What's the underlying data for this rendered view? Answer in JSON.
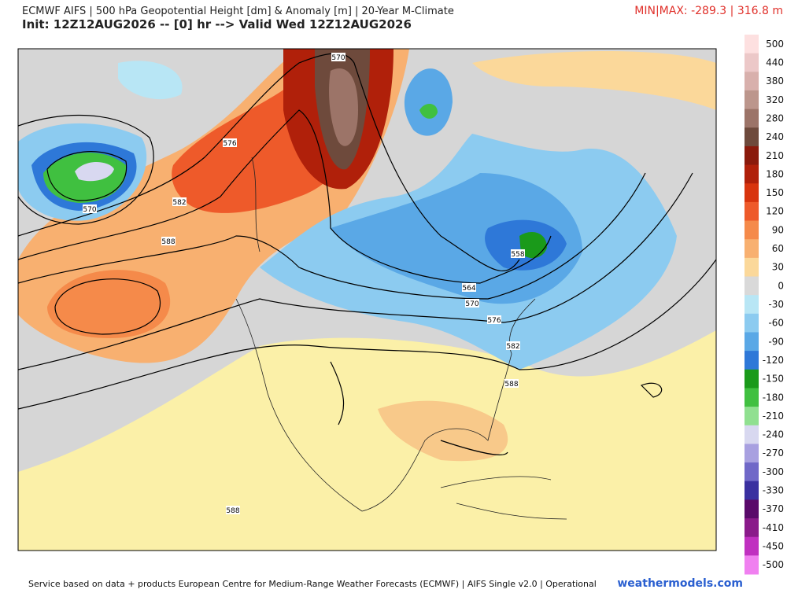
{
  "header": {
    "title": "ECMWF AIFS | 500 hPa Geopotential Height [dm] & Anomaly [m] | 20-Year M-Climate",
    "init": "Init: 12Z12AUG2026 -- [0] hr --> Valid Wed 12Z12AUG2026",
    "minmax": "MIN|MAX: -289.3 | 316.8 m"
  },
  "contour_labels": [
    "570",
    "576",
    "570",
    "582",
    "588",
    "558",
    "564",
    "570",
    "576",
    "582",
    "588",
    "588"
  ],
  "legend": [
    {
      "label": "500",
      "color": "#fde0e0"
    },
    {
      "label": "440",
      "color": "#ecc8c8"
    },
    {
      "label": "380",
      "color": "#d8b0ac"
    },
    {
      "label": "320",
      "color": "#bc968c"
    },
    {
      "label": "280",
      "color": "#9c7468"
    },
    {
      "label": "240",
      "color": "#6e4a3c"
    },
    {
      "label": "210",
      "color": "#8a1a0c"
    },
    {
      "label": "180",
      "color": "#b0200a"
    },
    {
      "label": "150",
      "color": "#d8340e"
    },
    {
      "label": "120",
      "color": "#ee5a2a"
    },
    {
      "label": "90",
      "color": "#f58a4a"
    },
    {
      "label": "60",
      "color": "#f8b070"
    },
    {
      "label": "30",
      "color": "#fbd89a"
    },
    {
      "label": "0",
      "color": "#d9d9d9"
    },
    {
      "label": "-30",
      "color": "#b8e6f5"
    },
    {
      "label": "-60",
      "color": "#8ccbf0"
    },
    {
      "label": "-90",
      "color": "#5aa8e6"
    },
    {
      "label": "-120",
      "color": "#2e78d8"
    },
    {
      "label": "-150",
      "color": "#1a9a1a"
    },
    {
      "label": "-180",
      "color": "#40c040"
    },
    {
      "label": "-210",
      "color": "#90e090"
    },
    {
      "label": "-240",
      "color": "#d8d8f0"
    },
    {
      "label": "-270",
      "color": "#a8a0e0"
    },
    {
      "label": "-300",
      "color": "#7068c8"
    },
    {
      "label": "-330",
      "color": "#3a30a0"
    },
    {
      "label": "-370",
      "color": "#5a0a6a"
    },
    {
      "label": "-410",
      "color": "#8a1a8a"
    },
    {
      "label": "-450",
      "color": "#c030c0"
    },
    {
      "label": "-500",
      "color": "#f080f0"
    }
  ],
  "footer": {
    "credit": "Service based on data + products European Centre for Medium-Range Weather Forecasts (ECMWF) | AIFS Single v2.0 | Operational",
    "site": "weathermodels.com"
  }
}
